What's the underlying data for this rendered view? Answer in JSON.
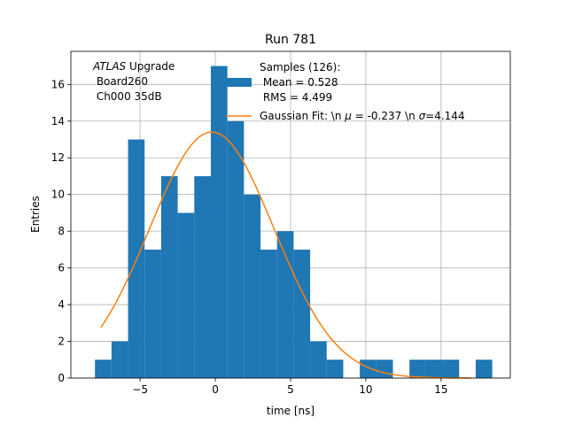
{
  "chart_data": {
    "type": "bar",
    "title": "Run 781",
    "xlabel": "time [ns]",
    "ylabel": "Entries",
    "xlim": [
      -9.6,
      19.6
    ],
    "ylim": [
      0,
      17.8
    ],
    "grid": true,
    "xticks": [
      -5,
      0,
      5,
      10,
      15
    ],
    "xtick_labels": [
      "−5",
      "0",
      "5",
      "10",
      "15"
    ],
    "yticks": [
      0,
      2,
      4,
      6,
      8,
      10,
      12,
      14,
      16
    ],
    "yticks_labels": [
      "0",
      "2",
      "4",
      "6",
      "8",
      "10",
      "12",
      "14",
      "16"
    ],
    "bin_edges": [
      -8.0,
      -6.9,
      -5.8,
      -4.7,
      -3.6,
      -2.5,
      -1.4,
      -0.3,
      0.8,
      1.9,
      3.0,
      4.1,
      5.2,
      6.3,
      7.4,
      8.5,
      9.6,
      10.7,
      11.8,
      12.9,
      14.0,
      15.1,
      16.2,
      17.3,
      18.4
    ],
    "counts": [
      1,
      2,
      13,
      7,
      11,
      9,
      11,
      17,
      14,
      10,
      7,
      8,
      7,
      2,
      1,
      0,
      1,
      1,
      0,
      1,
      1,
      1,
      0,
      1
    ],
    "series": [
      {
        "name": "Samples (126):\n Mean = 0.528\n RMS = 4.499",
        "kind": "histogram",
        "color": "#1f77b4"
      },
      {
        "name": "Gaussian Fit: \\n μ = -0.237 \\n σ=4.144",
        "kind": "line",
        "color": "#ff7f0e",
        "amplitude": 13.4,
        "mu": -0.237,
        "sigma": 4.144,
        "x_range": [
          -7.6,
          17.0
        ]
      }
    ],
    "annotation": {
      "atlas": "ATLAS",
      "upgrade": " Upgrade",
      "board": " Board260",
      "channel": " Ch000 35dB"
    },
    "legend": {
      "position": "top-center",
      "samples_line1": "Samples (126):",
      "samples_line2": " Mean = 0.528",
      "samples_line3": " RMS = 4.499",
      "fit_prefix": "Gaussian Fit: \\n ",
      "fit_mu": "μ",
      "fit_mid": " = -0.237 \\n ",
      "fit_sigma": "σ",
      "fit_suffix": "=4.144"
    }
  }
}
